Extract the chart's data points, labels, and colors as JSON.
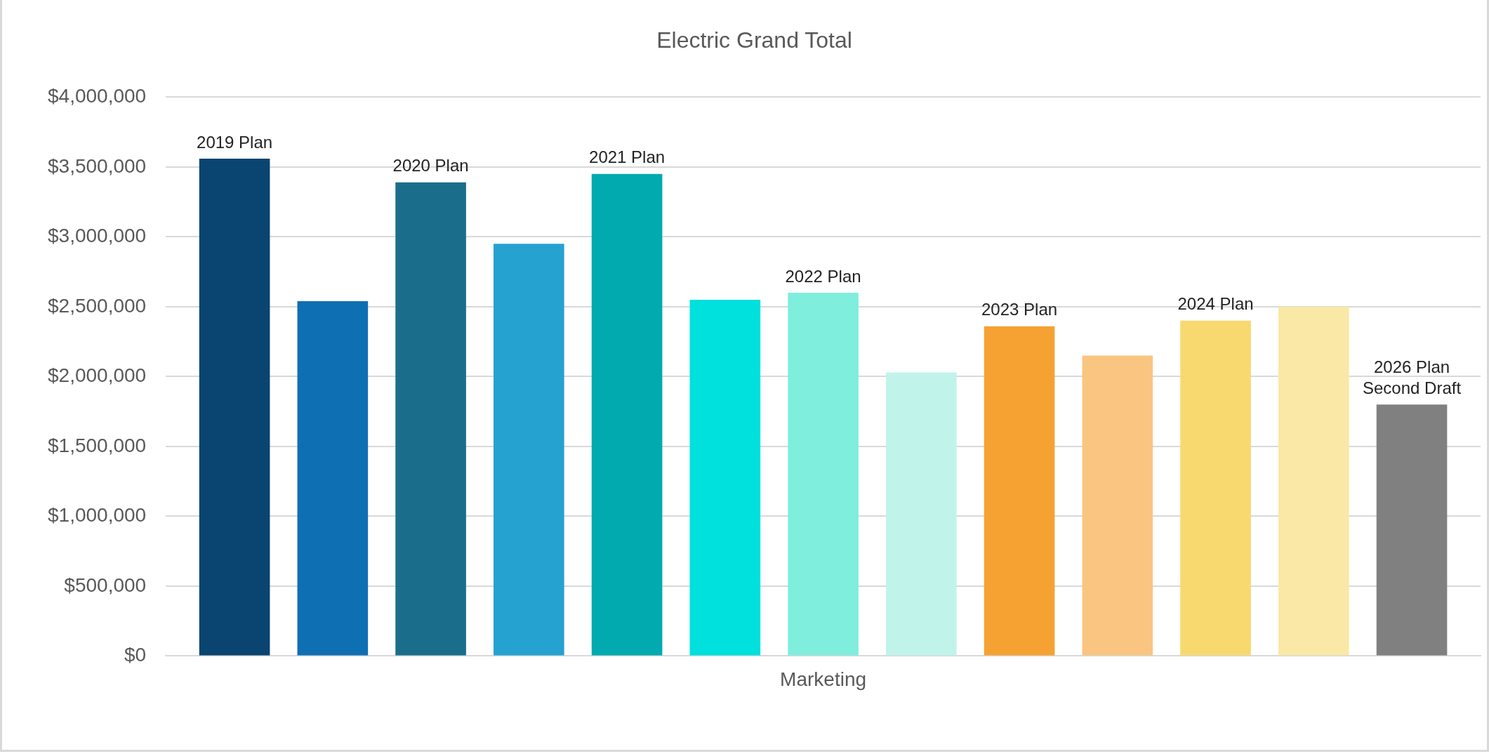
{
  "chart_data": {
    "type": "bar",
    "title": "Electric Grand Total",
    "categories": [
      "Marketing"
    ],
    "series": [
      {
        "name": "2019 Plan",
        "color": "#0a4470",
        "values": [
          3560000
        ]
      },
      {
        "color": "#0f6fb3",
        "values": [
          2540000
        ]
      },
      {
        "name": "2020 Plan",
        "color": "#1a6e8c",
        "values": [
          3390000
        ]
      },
      {
        "color": "#26a2d0",
        "values": [
          2950000
        ]
      },
      {
        "name": "2021 Plan",
        "color": "#00aaaf",
        "values": [
          3450000
        ]
      },
      {
        "color": "#00e0dc",
        "values": [
          2550000
        ]
      },
      {
        "name": "2022 Plan",
        "color": "#7feedd",
        "values": [
          2600000
        ]
      },
      {
        "color": "#c0f4eb",
        "values": [
          2030000
        ]
      },
      {
        "name": "2023 Plan",
        "color": "#f5a233",
        "values": [
          2360000
        ]
      },
      {
        "color": "#f9c580",
        "values": [
          2150000
        ]
      },
      {
        "name": "2024 Plan",
        "color": "#f8d96f",
        "values": [
          2400000
        ]
      },
      {
        "color": "#fae8a6",
        "values": [
          2500000
        ]
      },
      {
        "name": "2026 Plan Second Draft",
        "color": "#808080",
        "values": [
          1800000
        ]
      }
    ],
    "ylim": [
      0,
      4000000
    ],
    "yticks": [
      {
        "value": 0,
        "label": "$0"
      },
      {
        "value": 500000,
        "label": "$500,000"
      },
      {
        "value": 1000000,
        "label": "$1,000,000"
      },
      {
        "value": 1500000,
        "label": "$1,500,000"
      },
      {
        "value": 2000000,
        "label": "$2,000,000"
      },
      {
        "value": 2500000,
        "label": "$2,500,000"
      },
      {
        "value": 3000000,
        "label": "$3,000,000"
      },
      {
        "value": 3500000,
        "label": "$3,500,000"
      },
      {
        "value": 4000000,
        "label": "$4,000,000"
      }
    ],
    "grid": "y",
    "legend": false
  }
}
